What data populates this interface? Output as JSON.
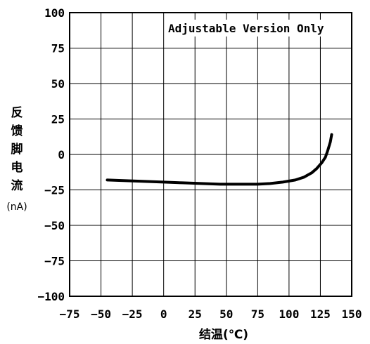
{
  "chart_data": {
    "type": "line",
    "title": "",
    "annotation": "Adjustable Version Only",
    "xlabel": "结温(℃)",
    "ylabel_chars": [
      "反",
      "馈",
      "脚",
      "电",
      "流"
    ],
    "ylabel_unit": "(nA)",
    "xlim": [
      -75,
      150
    ],
    "ylim": [
      -100,
      100
    ],
    "x_ticks": [
      "-75",
      "-50",
      "-25",
      "0",
      "25",
      "50",
      "75",
      "100",
      "125",
      "150"
    ],
    "y_ticks": [
      "100",
      "75",
      "50",
      "25",
      "0",
      "-25",
      "-50",
      "-75",
      "-100"
    ],
    "grid": true,
    "series": [
      {
        "x": [
          -45,
          -30,
          -15,
          0,
          15,
          30,
          45,
          60,
          75,
          85,
          95,
          105,
          112,
          118,
          122,
          126,
          129,
          131,
          133,
          134
        ],
        "y": [
          -18,
          -18.5,
          -19,
          -19.5,
          -20,
          -20.5,
          -21,
          -21,
          -21,
          -20.5,
          -19.5,
          -18,
          -16,
          -13,
          -10,
          -6,
          -2,
          3,
          9,
          14
        ]
      }
    ],
    "line_color": "#000000"
  }
}
